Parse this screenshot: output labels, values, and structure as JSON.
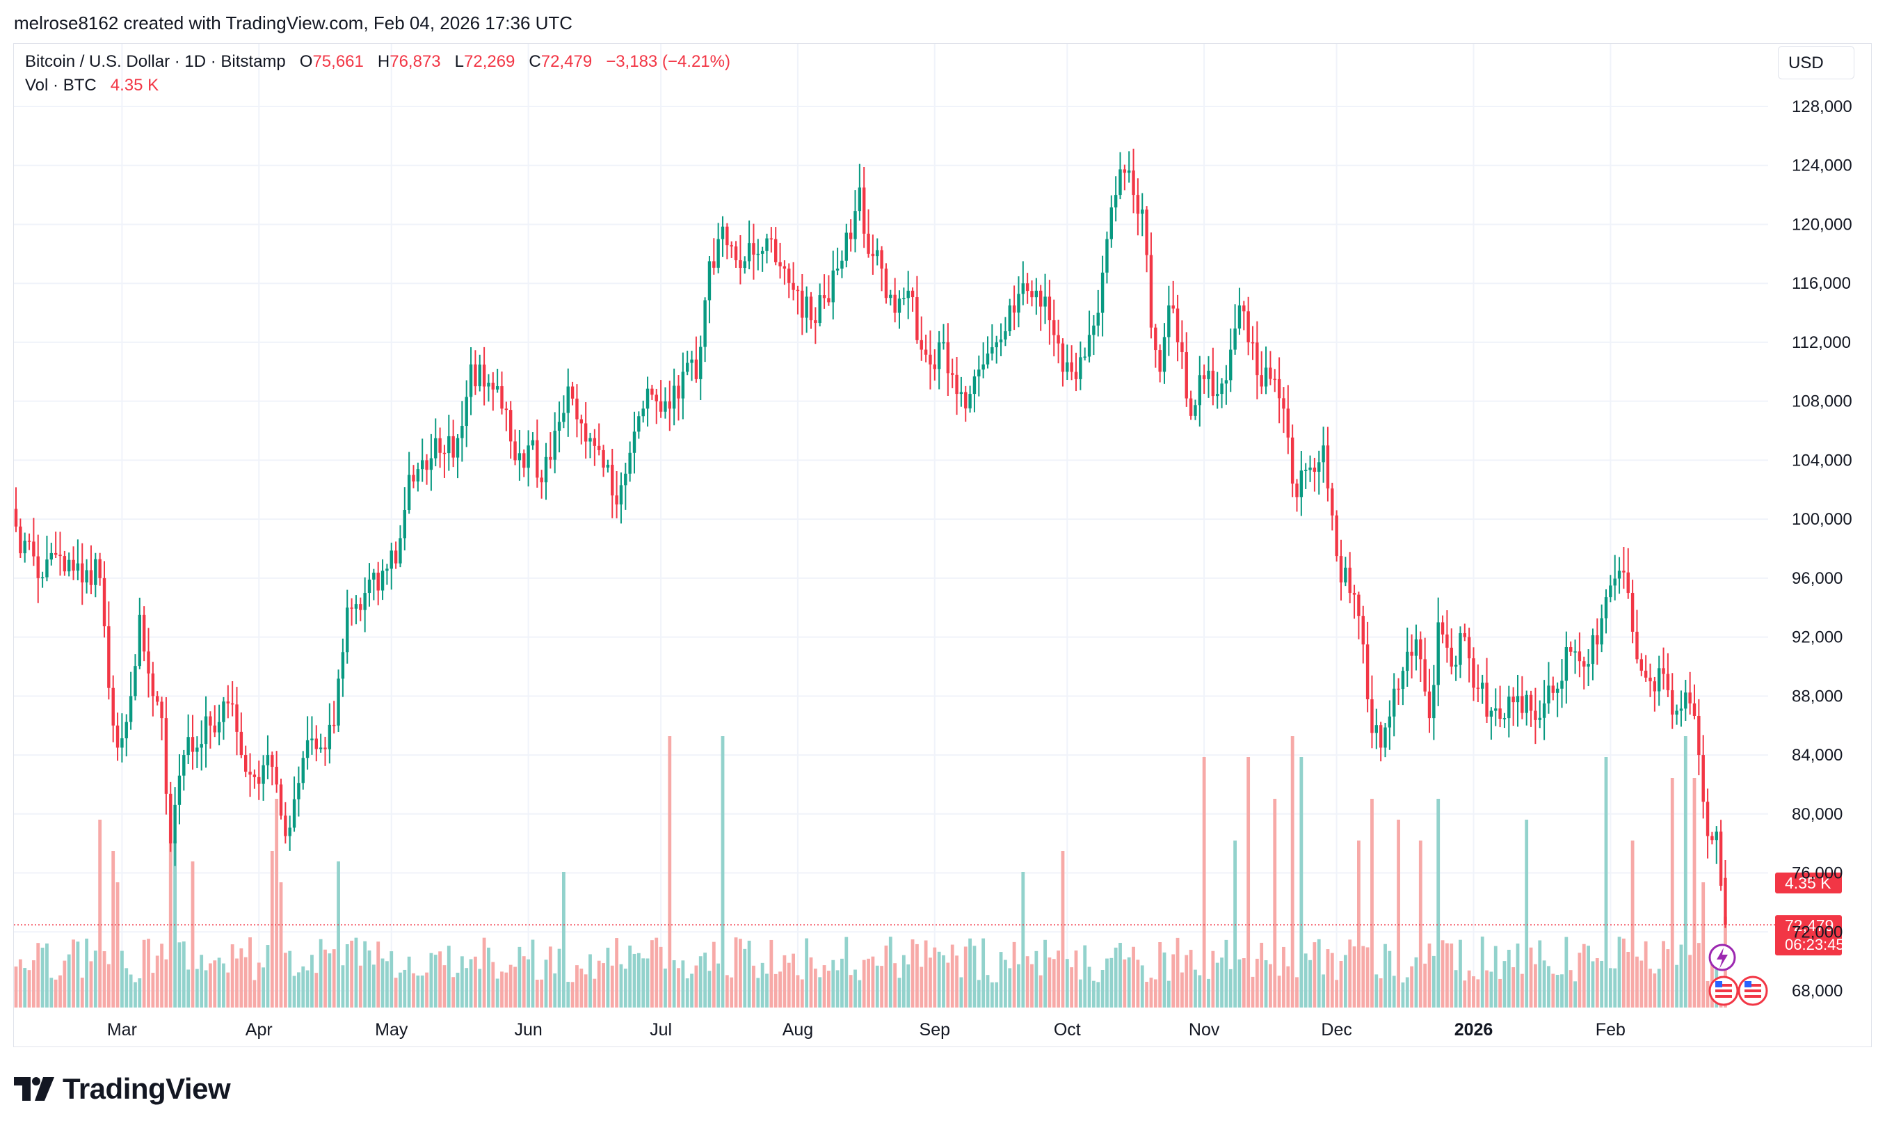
{
  "caption": "melrose8162 created with TradingView.com, Feb 04, 2026 17:36 UTC",
  "legend": {
    "symbol": "Bitcoin / U.S. Dollar · 1D · Bitstamp",
    "o_label": "O",
    "o_value": "75,661",
    "h_label": "H",
    "h_value": "76,873",
    "l_label": "L",
    "l_value": "72,269",
    "c_label": "C",
    "c_value": "72,479",
    "change": "−3,183 (−4.21%)",
    "vol_label": "Vol · BTC",
    "vol_value": "4.35 K"
  },
  "currency_button": "USD",
  "price_tag": "72,479",
  "countdown": "06:23:45",
  "volume_tag": "4.35 K",
  "brand": "TradingView",
  "colors": {
    "up": "#089981",
    "down": "#f23645",
    "vol_up": "#92d2cc",
    "vol_down": "#f7a9a7",
    "grid": "#f0f3fa",
    "text": "#131722"
  },
  "chart_data": {
    "type": "candlestick",
    "title": "Bitcoin / U.S. Dollar · 1D · Bitstamp",
    "ylabel": "USD",
    "ylim": [
      66000,
      130500
    ],
    "y_ticks": [
      68000,
      72000,
      76000,
      80000,
      84000,
      88000,
      92000,
      96000,
      100000,
      104000,
      108000,
      112000,
      116000,
      120000,
      124000,
      128000
    ],
    "y_tick_labels": [
      "68,000",
      "72,000",
      "76,000",
      "80,000",
      "84,000",
      "88,000",
      "92,000",
      "96,000",
      "100,000",
      "104,000",
      "108,000",
      "112,000",
      "116,000",
      "120,000",
      "124,000",
      "128,000"
    ],
    "x_range_days": [
      0,
      370
    ],
    "x_ticks": [
      {
        "label": "Mar",
        "day": 24,
        "bold": false
      },
      {
        "label": "Apr",
        "day": 55,
        "bold": false
      },
      {
        "label": "May",
        "day": 85,
        "bold": false
      },
      {
        "label": "Jun",
        "day": 116,
        "bold": false
      },
      {
        "label": "Jul",
        "day": 146,
        "bold": false
      },
      {
        "label": "Aug",
        "day": 177,
        "bold": false
      },
      {
        "label": "Sep",
        "day": 208,
        "bold": false
      },
      {
        "label": "Oct",
        "day": 238,
        "bold": false
      },
      {
        "label": "Nov",
        "day": 269,
        "bold": false
      },
      {
        "label": "Dec",
        "day": 299,
        "bold": false
      },
      {
        "label": "2026",
        "day": 330,
        "bold": true
      },
      {
        "label": "Feb",
        "day": 361,
        "bold": false
      }
    ],
    "close_anchors": [
      [
        0,
        99500
      ],
      [
        5,
        96000
      ],
      [
        10,
        97500
      ],
      [
        14,
        97000
      ],
      [
        19,
        96000
      ],
      [
        22,
        86000
      ],
      [
        23,
        84500
      ],
      [
        26,
        88000
      ],
      [
        28,
        93500
      ],
      [
        31,
        88000
      ],
      [
        33,
        86500
      ],
      [
        35,
        78000
      ],
      [
        38,
        84000
      ],
      [
        41,
        84500
      ],
      [
        44,
        86000
      ],
      [
        48,
        87500
      ],
      [
        51,
        84000
      ],
      [
        54,
        82500
      ],
      [
        57,
        84000
      ],
      [
        59,
        82000
      ],
      [
        61,
        78500
      ],
      [
        63,
        81000
      ],
      [
        66,
        85000
      ],
      [
        69,
        84500
      ],
      [
        72,
        86000
      ],
      [
        75,
        94000
      ],
      [
        79,
        95000
      ],
      [
        83,
        96500
      ],
      [
        86,
        97000
      ],
      [
        89,
        103000
      ],
      [
        92,
        104000
      ],
      [
        96,
        104500
      ],
      [
        100,
        105500
      ],
      [
        103,
        110500
      ],
      [
        106,
        109000
      ],
      [
        110,
        107500
      ],
      [
        113,
        104000
      ],
      [
        116,
        105000
      ],
      [
        119,
        102500
      ],
      [
        122,
        106000
      ],
      [
        125,
        109000
      ],
      [
        128,
        106500
      ],
      [
        130,
        105500
      ],
      [
        133,
        103500
      ],
      [
        136,
        101000
      ],
      [
        139,
        104500
      ],
      [
        142,
        107500
      ],
      [
        145,
        108000
      ],
      [
        148,
        107500
      ],
      [
        151,
        110000
      ],
      [
        154,
        109500
      ],
      [
        157,
        117500
      ],
      [
        159,
        119000
      ],
      [
        162,
        118500
      ],
      [
        165,
        117500
      ],
      [
        168,
        118000
      ],
      [
        171,
        119000
      ],
      [
        174,
        117000
      ],
      [
        177,
        115500
      ],
      [
        180,
        113500
      ],
      [
        183,
        115000
      ],
      [
        186,
        117000
      ],
      [
        189,
        119000
      ],
      [
        191,
        122500
      ],
      [
        193,
        118000
      ],
      [
        196,
        117000
      ],
      [
        199,
        114000
      ],
      [
        202,
        115500
      ],
      [
        205,
        111500
      ],
      [
        207,
        110500
      ],
      [
        210,
        112000
      ],
      [
        213,
        108500
      ],
      [
        216,
        108500
      ],
      [
        219,
        110500
      ],
      [
        222,
        112000
      ],
      [
        225,
        114500
      ],
      [
        228,
        116000
      ],
      [
        231,
        115500
      ],
      [
        234,
        113500
      ],
      [
        237,
        110000
      ],
      [
        240,
        109500
      ],
      [
        243,
        112500
      ],
      [
        245,
        114000
      ],
      [
        247,
        119000
      ],
      [
        249,
        122000
      ],
      [
        251,
        123500
      ],
      [
        253,
        122000
      ],
      [
        255,
        121000
      ],
      [
        257,
        113000
      ],
      [
        259,
        110000
      ],
      [
        261,
        114500
      ],
      [
        263,
        112000
      ],
      [
        266,
        107000
      ],
      [
        269,
        109500
      ],
      [
        272,
        108500
      ],
      [
        275,
        111500
      ],
      [
        277,
        114500
      ],
      [
        279,
        112000
      ],
      [
        282,
        109000
      ],
      [
        285,
        109500
      ],
      [
        287,
        107500
      ],
      [
        290,
        101500
      ],
      [
        293,
        103500
      ],
      [
        296,
        105000
      ],
      [
        299,
        97500
      ],
      [
        302,
        95000
      ],
      [
        305,
        91500
      ],
      [
        307,
        85500
      ],
      [
        309,
        84500
      ],
      [
        312,
        88500
      ],
      [
        315,
        91000
      ],
      [
        318,
        90500
      ],
      [
        320,
        86500
      ],
      [
        322,
        93000
      ],
      [
        325,
        90000
      ],
      [
        328,
        92000
      ],
      [
        331,
        88500
      ],
      [
        334,
        87000
      ],
      [
        337,
        86500
      ],
      [
        340,
        88000
      ],
      [
        343,
        87000
      ],
      [
        346,
        87500
      ],
      [
        349,
        88500
      ],
      [
        352,
        91000
      ],
      [
        355,
        90000
      ],
      [
        358,
        91500
      ],
      [
        361,
        95500
      ],
      [
        363,
        96500
      ],
      [
        365,
        95000
      ],
      [
        367,
        90500
      ],
      [
        370,
        89000
      ],
      [
        373,
        89500
      ],
      [
        376,
        87000
      ],
      [
        379,
        87500
      ],
      [
        381,
        84000
      ],
      [
        383,
        78500
      ],
      [
        385,
        78800
      ],
      [
        387,
        72479
      ]
    ],
    "last_candle": {
      "open": 75661,
      "high": 76873,
      "low": 72269,
      "close": 72479
    },
    "volume": {
      "last_value_k": 4.35,
      "max_visible_k": 10,
      "spikes": [
        [
          19,
          9
        ],
        [
          22,
          7.5
        ],
        [
          23,
          6
        ],
        [
          35,
          9
        ],
        [
          36,
          8
        ],
        [
          40,
          7
        ],
        [
          58,
          7.5
        ],
        [
          59,
          10
        ],
        [
          60,
          6
        ],
        [
          73,
          7
        ],
        [
          124,
          6.5
        ],
        [
          148,
          13
        ],
        [
          160,
          13
        ],
        [
          228,
          6.5
        ],
        [
          237,
          7.5
        ],
        [
          269,
          12
        ],
        [
          276,
          8
        ],
        [
          279,
          12
        ],
        [
          285,
          10
        ],
        [
          289,
          13
        ],
        [
          291,
          12
        ],
        [
          304,
          8
        ],
        [
          307,
          10
        ],
        [
          313,
          9
        ],
        [
          318,
          8
        ],
        [
          322,
          10
        ],
        [
          342,
          9
        ],
        [
          360,
          12
        ],
        [
          366,
          8
        ],
        [
          375,
          11
        ],
        [
          378,
          13
        ],
        [
          380,
          11
        ],
        [
          382,
          6
        ]
      ]
    }
  }
}
